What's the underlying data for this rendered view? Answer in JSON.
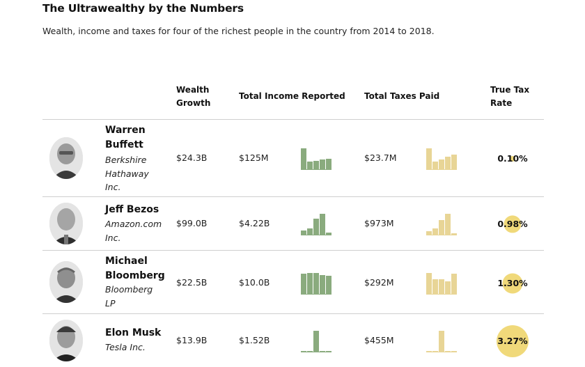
{
  "title": "The Ultrawealthy by the Numbers",
  "subtitle": "Wealth, income and taxes for four of the richest people in the country from 2014 to 2018.",
  "headers": {
    "wealth_line1": "Wealth",
    "wealth_line2": "Growth",
    "income": "Total Income Reported",
    "taxes": "Total Taxes Paid",
    "rate_line1": "True Tax",
    "rate_line2": "Rate"
  },
  "colors": {
    "income_bars": "#8aab7e",
    "tax_bars": "#e8d596",
    "rate_bubble": "#f0d97a"
  },
  "rows": [
    {
      "name_line1": "Warren",
      "name_line2": "Buffett",
      "company_line1": "Berkshire",
      "company_line2": "Hathaway",
      "company_line3": "Inc.",
      "wealth_growth": "$24.3B",
      "income": "$125M",
      "taxes": "$23.7M",
      "rate": "0.10%",
      "rate_value": 0.1,
      "income_series": [
        1.0,
        0.35,
        0.4,
        0.45,
        0.5
      ],
      "tax_series": [
        1.0,
        0.35,
        0.45,
        0.6,
        0.7
      ]
    },
    {
      "name_line1": "Jeff Bezos",
      "company_line1": "Amazon.com",
      "company_line2": "Inc.",
      "wealth_growth": "$99.0B",
      "income": "$4.22B",
      "taxes": "$973M",
      "rate": "0.98%",
      "rate_value": 0.98,
      "income_series": [
        0.2,
        0.3,
        0.75,
        1.0,
        0.1
      ],
      "tax_series": [
        0.15,
        0.3,
        0.7,
        1.0,
        0.05
      ]
    },
    {
      "name_line1": "Michael",
      "name_line2": "Bloomberg",
      "company_line1": "Bloomberg",
      "company_line2": "LP",
      "wealth_growth": "$22.5B",
      "income": "$10.0B",
      "taxes": "$292M",
      "rate": "1.30%",
      "rate_value": 1.3,
      "income_series": [
        0.95,
        1.0,
        1.0,
        0.9,
        0.85
      ],
      "tax_series": [
        1.0,
        0.7,
        0.7,
        0.6,
        0.95
      ]
    },
    {
      "name_line1": "Elon Musk",
      "company_line1": "Tesla Inc.",
      "wealth_growth": "$13.9B",
      "income": "$1.52B",
      "taxes": "$455M",
      "rate": "3.27%",
      "rate_value": 3.27,
      "income_series": [
        0.04,
        0.04,
        1.0,
        0.04,
        0.04
      ],
      "tax_series": [
        0.02,
        0.02,
        1.0,
        0.02,
        0.02
      ]
    }
  ]
}
